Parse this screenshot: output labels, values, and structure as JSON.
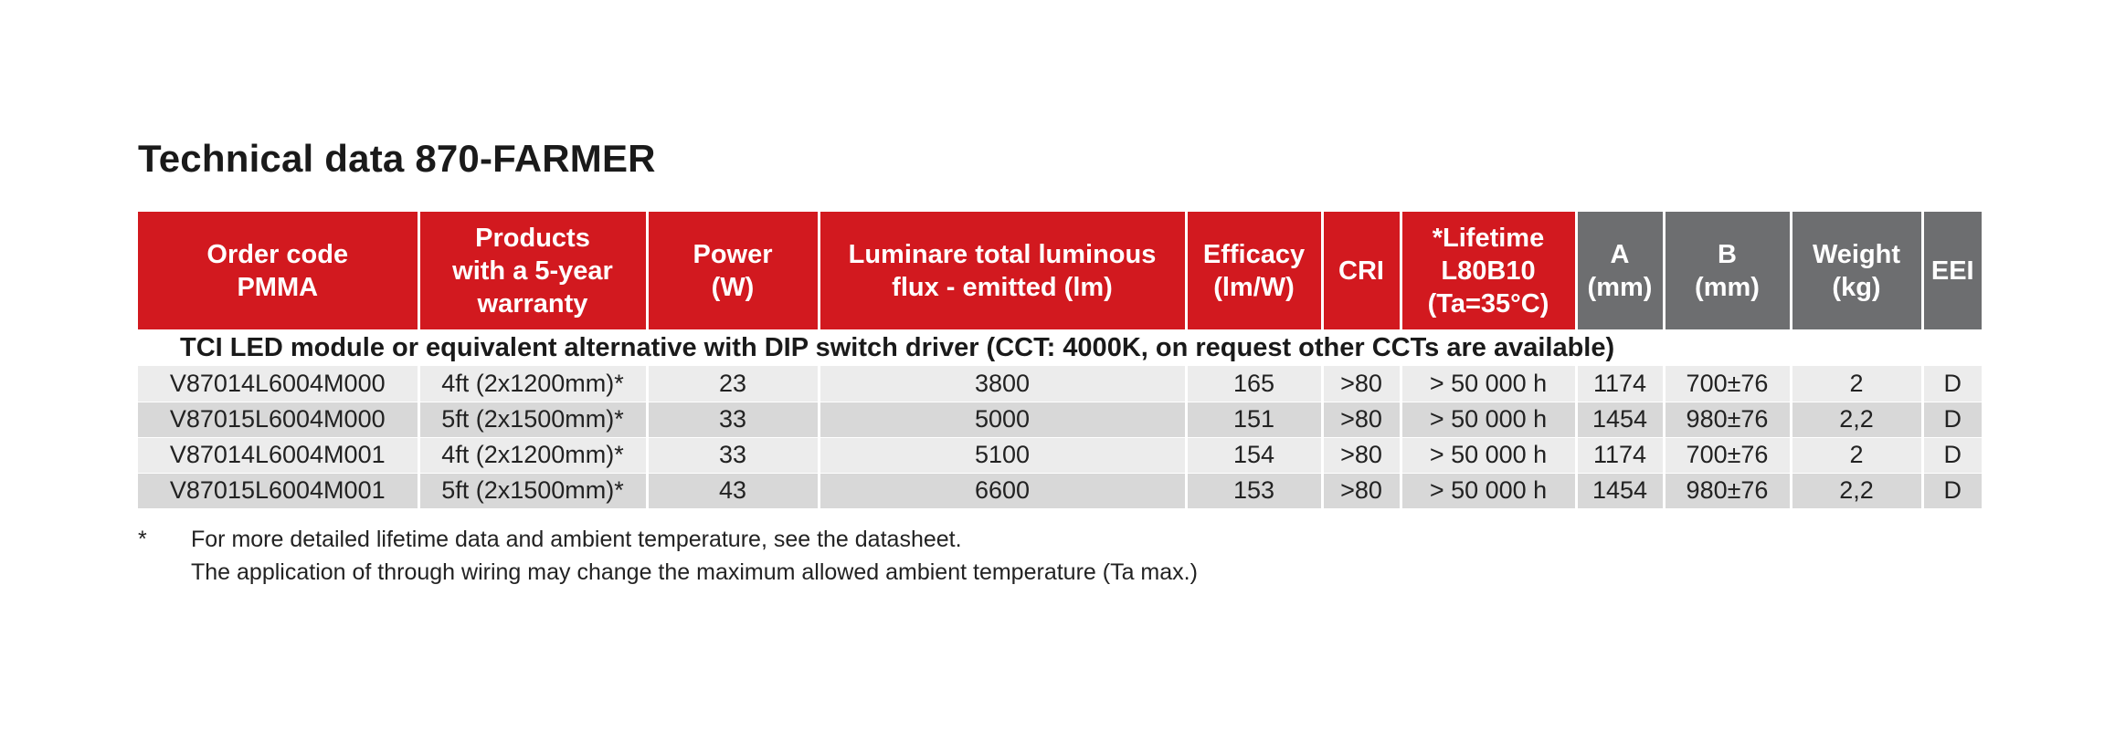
{
  "title": "Technical data 870-FARMER",
  "table": {
    "headers": [
      {
        "label": "Order code\nPMMA",
        "style": "red"
      },
      {
        "label": "Products\nwith a 5-year\nwarranty",
        "style": "red"
      },
      {
        "label": "Power\n(W)",
        "style": "red"
      },
      {
        "label": "Luminare total luminous\nflux - emitted (lm)",
        "style": "red"
      },
      {
        "label": "Efficacy\n(lm/W)",
        "style": "red"
      },
      {
        "label": "CRI",
        "style": "red"
      },
      {
        "label": "*Lifetime\nL80B10\n(Ta=35°C)",
        "style": "red"
      },
      {
        "label": "A\n(mm)",
        "style": "gray"
      },
      {
        "label": "B\n(mm)",
        "style": "gray"
      },
      {
        "label": "Weight\n(kg)",
        "style": "gray"
      },
      {
        "label": "EEI",
        "style": "gray"
      }
    ],
    "section_title": "TCI LED module or equivalent alternative with DIP switch driver (CCT: 4000K, on request other CCTs are available)",
    "rows": [
      [
        "V87014L6004M000",
        "4ft (2x1200mm)*",
        "23",
        "3800",
        "165",
        ">80",
        "> 50 000 h",
        "1174",
        "700±76",
        "2",
        "D"
      ],
      [
        "V87015L6004M000",
        "5ft (2x1500mm)*",
        "33",
        "5000",
        "151",
        ">80",
        "> 50 000 h",
        "1454",
        "980±76",
        "2,2",
        "D"
      ],
      [
        "V87014L6004M001",
        "4ft (2x1200mm)*",
        "33",
        "5100",
        "154",
        ">80",
        "> 50 000 h",
        "1174",
        "700±76",
        "2",
        "D"
      ],
      [
        "V87015L6004M001",
        "5ft (2x1500mm)*",
        "43",
        "6600",
        "153",
        ">80",
        "> 50 000 h",
        "1454",
        "980±76",
        "2,2",
        "D"
      ]
    ]
  },
  "footnote": {
    "marker": "*",
    "lines": [
      "For more detailed lifetime data and ambient temperature, see the datasheet.",
      "The application of through wiring may change the maximum allowed ambient temperature (Ta max.)"
    ]
  },
  "colors": {
    "header_red": "#d2191f",
    "header_gray": "#6d6e70",
    "row_light": "#ececec",
    "row_dark": "#d8d8d8"
  }
}
